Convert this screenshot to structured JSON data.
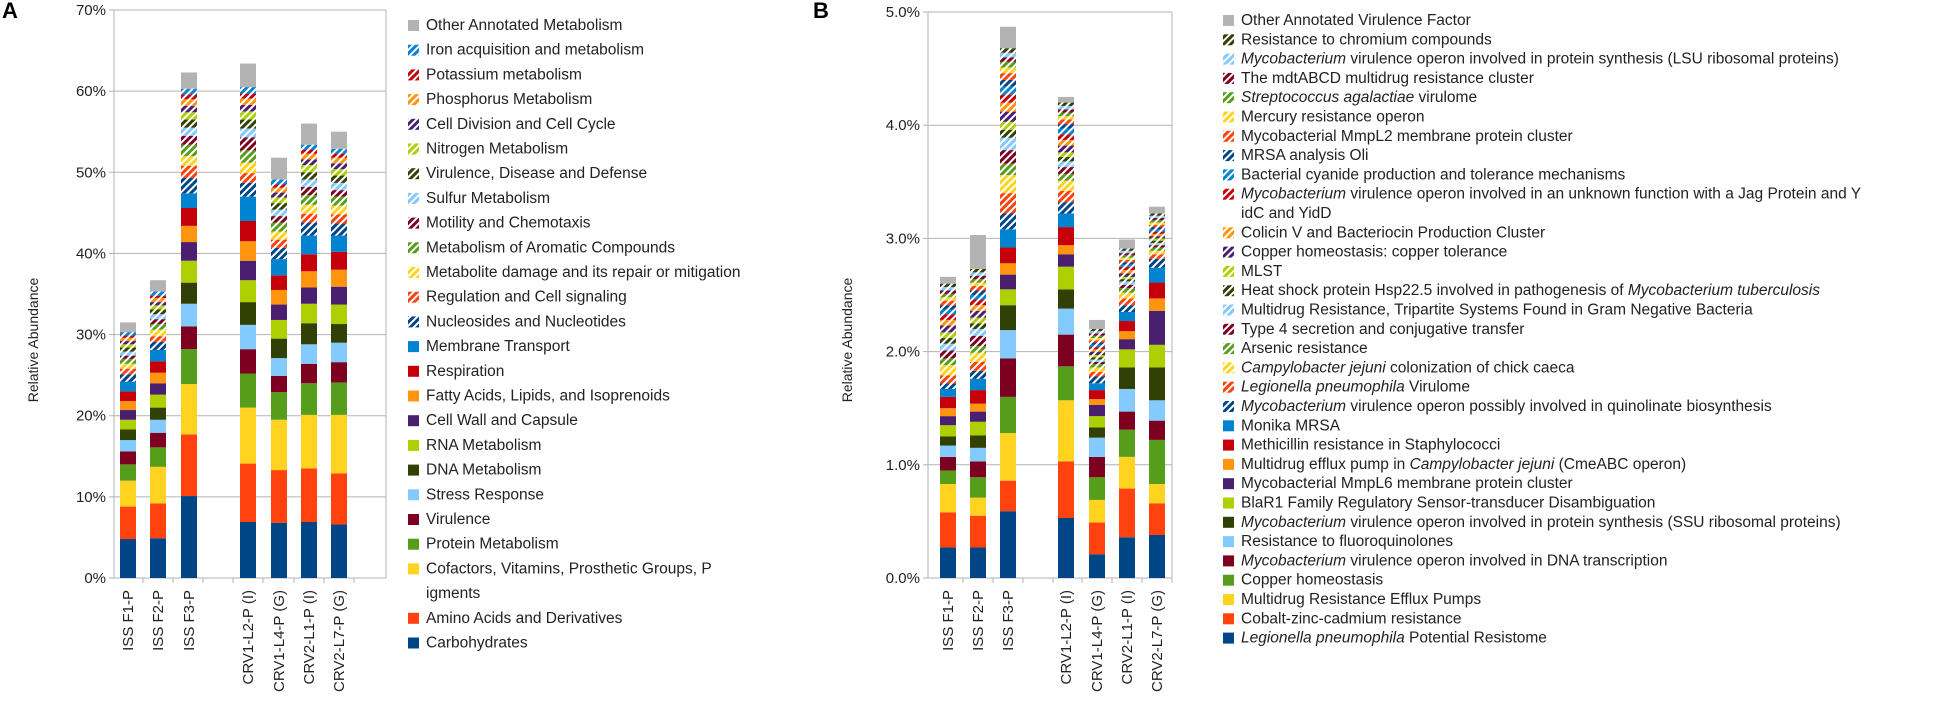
{
  "chart_data": [
    {
      "type": "bar",
      "stacked": true,
      "panel_label": "A",
      "ylabel": "Relative Abundance",
      "ylim": [
        0,
        70
      ],
      "y_ticks": [
        "0%",
        "10%",
        "20%",
        "30%",
        "40%",
        "50%",
        "60%",
        "70%"
      ],
      "grid": true,
      "categories": [
        "ISS F1-P",
        "ISS F2-P",
        "ISS F3-P",
        "CRV1-L2-P (I)",
        "CRV1-L4-P (G)",
        "CRV2-L1-P (I)",
        "CRV2-L7-P (G)"
      ],
      "series": [
        {
          "name": "Carbohydrates",
          "color": "#004586",
          "pattern": "",
          "values": [
            4.8,
            4.9,
            10.1,
            6.9,
            6.8,
            6.9,
            6.6
          ]
        },
        {
          "name": "Amino Acids and Derivatives",
          "color": "#ff420e",
          "pattern": "",
          "values": [
            4.0,
            4.3,
            7.6,
            7.2,
            6.5,
            6.6,
            6.3
          ]
        },
        {
          "name": "Cofactors, Vitamins, Prosthetic Groups, Pigments",
          "color": "#ffd320",
          "pattern": "",
          "values": [
            3.2,
            4.5,
            6.2,
            6.9,
            6.2,
            6.6,
            7.2
          ]
        },
        {
          "name": "Protein Metabolism",
          "color": "#579d1c",
          "pattern": "",
          "values": [
            2.0,
            2.4,
            4.3,
            4.2,
            3.4,
            3.9,
            4.0
          ]
        },
        {
          "name": "Virulence",
          "color": "#7e0021",
          "pattern": "",
          "values": [
            1.6,
            1.8,
            2.8,
            3.0,
            2.0,
            2.4,
            2.5
          ]
        },
        {
          "name": "Stress Response",
          "color": "#83caff",
          "pattern": "",
          "values": [
            1.4,
            1.6,
            2.8,
            3.0,
            2.2,
            2.4,
            2.4
          ]
        },
        {
          "name": "DNA Metabolism",
          "color": "#314004",
          "pattern": "",
          "values": [
            1.3,
            1.5,
            2.6,
            2.8,
            2.4,
            2.6,
            2.3
          ]
        },
        {
          "name": "RNA Metabolism",
          "color": "#aecf00",
          "pattern": "",
          "values": [
            1.2,
            1.6,
            2.7,
            2.7,
            2.3,
            2.4,
            2.4
          ]
        },
        {
          "name": "Cell Wall and Capsule",
          "color": "#4b1f6f",
          "pattern": "",
          "values": [
            1.2,
            1.4,
            2.3,
            2.4,
            1.9,
            2.0,
            2.2
          ]
        },
        {
          "name": "Fatty Acids, Lipids, and Isoprenoids",
          "color": "#ff950e",
          "pattern": "",
          "values": [
            1.1,
            1.3,
            2.0,
            2.4,
            1.8,
            2.0,
            2.1
          ]
        },
        {
          "name": "Respiration",
          "color": "#c5000b",
          "pattern": "",
          "values": [
            1.2,
            1.4,
            2.2,
            2.5,
            1.8,
            2.1,
            2.2
          ]
        },
        {
          "name": "Membrane Transport",
          "color": "#0084d1",
          "pattern": "",
          "values": [
            1.2,
            1.4,
            1.8,
            3.0,
            2.0,
            2.3,
            2.0
          ]
        },
        {
          "name": "Nucleosides and Nucleotides",
          "color": "#004586",
          "pattern": "stripe",
          "values": [
            0.9,
            1.0,
            1.9,
            1.7,
            1.4,
            1.6,
            1.5
          ]
        },
        {
          "name": "Regulation and Cell signaling",
          "color": "#ff420e",
          "pattern": "stripe",
          "values": [
            0.7,
            0.7,
            1.5,
            1.2,
            1.0,
            1.1,
            1.1
          ]
        },
        {
          "name": "Metabolite damage and its repair or mitigation",
          "color": "#ffd320",
          "pattern": "stripe",
          "values": [
            0.6,
            0.8,
            1.2,
            1.3,
            1.0,
            1.1,
            1.1
          ]
        },
        {
          "name": "Metabolism of Aromatic Compounds",
          "color": "#579d1c",
          "pattern": "stripe",
          "values": [
            0.6,
            0.7,
            1.4,
            1.5,
            1.1,
            1.2,
            1.1
          ]
        },
        {
          "name": "Motility and Chemotaxis",
          "color": "#7e0021",
          "pattern": "stripe",
          "values": [
            0.4,
            0.6,
            1.1,
            1.6,
            0.8,
            1.0,
            0.8
          ]
        },
        {
          "name": "Sulfur Metabolism",
          "color": "#83caff",
          "pattern": "stripe",
          "values": [
            0.5,
            0.6,
            1.0,
            1.1,
            0.8,
            0.9,
            0.9
          ]
        },
        {
          "name": "Virulence, Disease and Defense",
          "color": "#314004",
          "pattern": "stripe",
          "values": [
            0.5,
            0.6,
            1.0,
            1.1,
            0.8,
            0.9,
            0.9
          ]
        },
        {
          "name": "Nitrogen Metabolism",
          "color": "#aecf00",
          "pattern": "stripe",
          "values": [
            0.4,
            0.5,
            0.9,
            1.0,
            0.7,
            0.9,
            0.8
          ]
        },
        {
          "name": "Cell Division and Cell Cycle",
          "color": "#4b1f6f",
          "pattern": "stripe",
          "values": [
            0.4,
            0.4,
            0.8,
            0.8,
            0.6,
            0.7,
            0.7
          ]
        },
        {
          "name": "Phosphorus Metabolism",
          "color": "#ff950e",
          "pattern": "stripe",
          "values": [
            0.4,
            0.5,
            0.8,
            0.8,
            0.6,
            0.7,
            0.7
          ]
        },
        {
          "name": "Potassium metabolism",
          "color": "#c5000b",
          "pattern": "stripe",
          "values": [
            0.3,
            0.3,
            0.6,
            0.6,
            0.4,
            0.5,
            0.5
          ]
        },
        {
          "name": "Iron acquisition and metabolism",
          "color": "#0084d1",
          "pattern": "stripe",
          "values": [
            0.4,
            0.5,
            0.7,
            0.8,
            0.6,
            0.6,
            0.6
          ]
        },
        {
          "name": "Other Annotated Metabolism",
          "color": "#b3b3b3",
          "pattern": "",
          "values": [
            1.2,
            1.4,
            2.0,
            2.9,
            2.7,
            2.6,
            2.1
          ]
        }
      ]
    },
    {
      "type": "bar",
      "stacked": true,
      "panel_label": "B",
      "ylabel": "Relative Abundance",
      "ylim": [
        0,
        5
      ],
      "y_ticks": [
        "0.0%",
        "1.0%",
        "2.0%",
        "3.0%",
        "4.0%",
        "5.0%"
      ],
      "grid": true,
      "categories": [
        "ISS F1-P",
        "ISS F2-P",
        "ISS F3-P",
        "CRV1-L2-P (I)",
        "CRV1-L4-P (G)",
        "CRV2-L1-P (I)",
        "CRV2-L7-P (G)"
      ],
      "series": [
        {
          "name": "Legionella pneumophila Potential Resistome",
          "italic": [
            "Legionella pneumophila"
          ],
          "color": "#004586",
          "pattern": "",
          "values": [
            0.27,
            0.27,
            0.59,
            0.53,
            0.21,
            0.36,
            0.38
          ]
        },
        {
          "name": "Cobalt-zinc-cadmium resistance",
          "italic": [],
          "color": "#ff420e",
          "pattern": "",
          "values": [
            0.31,
            0.28,
            0.27,
            0.5,
            0.28,
            0.43,
            0.28
          ]
        },
        {
          "name": "Multidrug Resistance Efflux Pumps",
          "italic": [],
          "color": "#ffd320",
          "pattern": "",
          "values": [
            0.25,
            0.16,
            0.42,
            0.54,
            0.2,
            0.28,
            0.17
          ]
        },
        {
          "name": "Copper homeostasis",
          "italic": [],
          "color": "#579d1c",
          "pattern": "",
          "values": [
            0.12,
            0.18,
            0.32,
            0.3,
            0.2,
            0.24,
            0.39
          ]
        },
        {
          "name": "Mycobacterium virulence operon involved in DNA transcription",
          "italic": [
            "Mycobacterium"
          ],
          "color": "#7e0021",
          "pattern": "",
          "values": [
            0.12,
            0.14,
            0.34,
            0.28,
            0.18,
            0.16,
            0.17
          ]
        },
        {
          "name": "Resistance to fluoroquinolones",
          "italic": [],
          "color": "#83caff",
          "pattern": "",
          "values": [
            0.1,
            0.12,
            0.25,
            0.23,
            0.17,
            0.2,
            0.18
          ]
        },
        {
          "name": "Mycobacterium virulence operon involved in protein synthesis (SSU ribosomal proteins)",
          "italic": [
            "Mycobacterium"
          ],
          "color": "#314004",
          "pattern": "",
          "values": [
            0.08,
            0.11,
            0.22,
            0.17,
            0.09,
            0.19,
            0.29
          ]
        },
        {
          "name": "BlaR1 Family Regulatory Sensor-transducer Disambiguation",
          "italic": [],
          "color": "#aecf00",
          "pattern": "",
          "values": [
            0.1,
            0.12,
            0.14,
            0.2,
            0.1,
            0.16,
            0.2
          ]
        },
        {
          "name": "Mycobacterial MmpL6 membrane protein cluster",
          "italic": [],
          "color": "#4b1f6f",
          "pattern": "",
          "values": [
            0.08,
            0.09,
            0.13,
            0.11,
            0.1,
            0.09,
            0.3
          ]
        },
        {
          "name": "Multidrug efflux pump in Campylobacter jejuni (CmeABC operon)",
          "italic": [
            "Campylobacter jejuni"
          ],
          "color": "#ff950e",
          "pattern": "",
          "values": [
            0.07,
            0.07,
            0.1,
            0.08,
            0.05,
            0.07,
            0.11
          ]
        },
        {
          "name": "Methicillin resistance in Staphylococci",
          "italic": [],
          "color": "#c5000b",
          "pattern": "",
          "values": [
            0.1,
            0.12,
            0.14,
            0.16,
            0.08,
            0.09,
            0.14
          ]
        },
        {
          "name": "Monika MRSA",
          "italic": [],
          "color": "#0084d1",
          "pattern": "",
          "values": [
            0.07,
            0.1,
            0.16,
            0.12,
            0.06,
            0.08,
            0.13
          ]
        },
        {
          "name": "Mycobacterium virulence operon possibly involved in quinolinate biosynthesis",
          "italic": [
            "Mycobacterium"
          ],
          "color": "#004586",
          "pattern": "stripe",
          "values": [
            0.05,
            0.07,
            0.14,
            0.1,
            0.06,
            0.06,
            0.08
          ]
        },
        {
          "name": "Legionella pneumophila Virulome",
          "italic": [
            "Legionella pneumophila"
          ],
          "color": "#ff420e",
          "pattern": "stripe",
          "values": [
            0.07,
            0.08,
            0.18,
            0.1,
            0.04,
            0.06,
            0.04
          ]
        },
        {
          "name": "Campylobacter jejuni colonization of chick caeca",
          "italic": [
            "Campylobacter jejuni"
          ],
          "color": "#ffd320",
          "pattern": "stripe",
          "values": [
            0.09,
            0.08,
            0.16,
            0.09,
            0.04,
            0.05,
            0.03
          ]
        },
        {
          "name": "Arsenic resistance",
          "italic": [],
          "color": "#579d1c",
          "pattern": "stripe",
          "values": [
            0.06,
            0.06,
            0.1,
            0.06,
            0.03,
            0.04,
            0.03
          ]
        },
        {
          "name": "Type 4 secretion and conjugative transfer",
          "italic": [],
          "color": "#7e0021",
          "pattern": "stripe",
          "values": [
            0.07,
            0.09,
            0.12,
            0.06,
            0.02,
            0.03,
            0.02
          ]
        },
        {
          "name": "Multidrug Resistance, Tripartite Systems Found in Gram Negative Bacteria",
          "italic": [],
          "color": "#83caff",
          "pattern": "stripe",
          "values": [
            0.06,
            0.06,
            0.11,
            0.05,
            0.02,
            0.03,
            0.02
          ]
        },
        {
          "name": "Heat shock protein Hsp22.5 involved in pathogenesis of Mycobacterium tuberculosis",
          "italic": [
            "Mycobacterium tuberculosis"
          ],
          "color": "#314004",
          "pattern": "stripe",
          "values": [
            0.05,
            0.05,
            0.07,
            0.04,
            0.02,
            0.02,
            0.02
          ]
        },
        {
          "name": "MLST",
          "italic": [],
          "color": "#aecf00",
          "pattern": "stripe",
          "values": [
            0.05,
            0.05,
            0.07,
            0.04,
            0.02,
            0.02,
            0.02
          ]
        },
        {
          "name": "Copper homeostasis: copper tolerance",
          "italic": [],
          "color": "#4b1f6f",
          "pattern": "stripe",
          "values": [
            0.06,
            0.06,
            0.09,
            0.06,
            0.03,
            0.03,
            0.02
          ]
        },
        {
          "name": "Colicin V and Bacteriocin Production Cluster",
          "italic": [],
          "color": "#ff950e",
          "pattern": "stripe",
          "values": [
            0.05,
            0.05,
            0.08,
            0.05,
            0.02,
            0.03,
            0.02
          ]
        },
        {
          "name": "Mycobacterium virulence operon involved in an unknown function with a Jag Protein and YidC and YidD",
          "italic": [
            "Mycobacterium"
          ],
          "color": "#c5000b",
          "pattern": "stripe",
          "values": [
            0.05,
            0.05,
            0.07,
            0.05,
            0.02,
            0.03,
            0.02
          ]
        },
        {
          "name": "Bacterial cyanide production and tolerance mechanisms",
          "italic": [],
          "color": "#0084d1",
          "pattern": "stripe",
          "values": [
            0.04,
            0.04,
            0.07,
            0.05,
            0.02,
            0.02,
            0.02
          ]
        },
        {
          "name": "MRSA analysis Oli",
          "italic": [],
          "color": "#004586",
          "pattern": "stripe",
          "values": [
            0.04,
            0.04,
            0.06,
            0.04,
            0.02,
            0.02,
            0.02
          ]
        },
        {
          "name": "Mycobacterial MmpL2 membrane protein cluster",
          "italic": [],
          "color": "#ff420e",
          "pattern": "stripe",
          "values": [
            0.04,
            0.04,
            0.06,
            0.04,
            0.02,
            0.02,
            0.02
          ]
        },
        {
          "name": "Mercury resistance operon",
          "italic": [],
          "color": "#ffd320",
          "pattern": "stripe",
          "values": [
            0.03,
            0.03,
            0.05,
            0.03,
            0.02,
            0.02,
            0.02
          ]
        },
        {
          "name": "Streptococcus agalactiae virulome",
          "italic": [
            "Streptococcus agalactiae"
          ],
          "color": "#579d1c",
          "pattern": "stripe",
          "values": [
            0.03,
            0.03,
            0.05,
            0.03,
            0.02,
            0.02,
            0.02
          ]
        },
        {
          "name": "The mdtABCD multidrug resistance cluster",
          "italic": [],
          "color": "#7e0021",
          "pattern": "stripe",
          "values": [
            0.03,
            0.03,
            0.04,
            0.03,
            0.02,
            0.02,
            0.02
          ]
        },
        {
          "name": "Mycobacterium virulence operon involved in protein synthesis (LSU ribosomal proteins)",
          "italic": [
            "Mycobacterium"
          ],
          "color": "#83caff",
          "pattern": "stripe",
          "values": [
            0.03,
            0.03,
            0.04,
            0.03,
            0.02,
            0.02,
            0.02
          ]
        },
        {
          "name": "Resistance to chromium compounds",
          "italic": [],
          "color": "#314004",
          "pattern": "stripe",
          "values": [
            0.03,
            0.03,
            0.04,
            0.03,
            0.02,
            0.02,
            0.02
          ]
        },
        {
          "name": "Other Annotated Virulence Factor",
          "italic": [],
          "color": "#b3b3b3",
          "pattern": "",
          "values": [
            0.06,
            0.3,
            0.19,
            0.05,
            0.08,
            0.08,
            0.06
          ]
        }
      ]
    }
  ]
}
